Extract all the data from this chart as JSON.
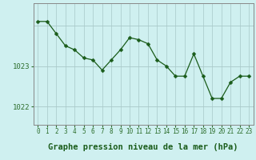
{
  "x": [
    0,
    1,
    2,
    3,
    4,
    5,
    6,
    7,
    8,
    9,
    10,
    11,
    12,
    13,
    14,
    15,
    16,
    17,
    18,
    19,
    20,
    21,
    22,
    23
  ],
  "y": [
    1024.1,
    1024.1,
    1023.8,
    1023.5,
    1023.4,
    1023.2,
    1023.15,
    1022.9,
    1023.15,
    1023.4,
    1023.7,
    1023.65,
    1023.55,
    1023.15,
    1023.0,
    1022.75,
    1022.75,
    1023.3,
    1022.75,
    1022.2,
    1022.2,
    1022.6,
    1022.75,
    1022.75
  ],
  "line_color": "#1a5c1a",
  "marker": "D",
  "marker_size": 2.5,
  "bg_color": "#cff0f0",
  "grid_color": "#a8c8c8",
  "xlabel": "Graphe pression niveau de la mer (hPa)",
  "xlabel_fontsize": 7.5,
  "xlabel_color": "#1a5c1a",
  "ytick_labels": [
    "1022",
    "1023"
  ],
  "ytick_values": [
    1022.0,
    1023.0
  ],
  "ylim": [
    1021.55,
    1024.55
  ],
  "xlim": [
    -0.5,
    23.5
  ],
  "xtick_values": [
    0,
    1,
    2,
    3,
    4,
    5,
    6,
    7,
    8,
    9,
    10,
    11,
    12,
    13,
    14,
    15,
    16,
    17,
    18,
    19,
    20,
    21,
    22,
    23
  ],
  "xtick_fontsize": 5.5,
  "ytick_fontsize": 6.5,
  "tick_color": "#2d6e2d",
  "spine_color": "#888888"
}
